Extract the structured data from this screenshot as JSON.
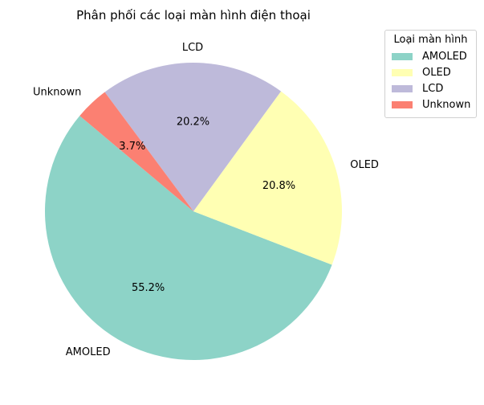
{
  "chart_data": {
    "type": "pie",
    "title": "Phân phối các loại màn hình điện thoại",
    "categories": [
      "AMOLED",
      "OLED",
      "LCD",
      "Unknown"
    ],
    "values": [
      55.2,
      20.8,
      20.2,
      3.7
    ],
    "value_labels": [
      "55.2%",
      "20.8%",
      "20.2%",
      "3.7%"
    ],
    "colors": [
      "#8dd3c7",
      "#ffffb3",
      "#bebada",
      "#fb8072"
    ],
    "start_angle_deg": 140,
    "direction": "counterclockwise",
    "legend": {
      "title": "Loại màn hình",
      "placement": "top-right"
    }
  }
}
